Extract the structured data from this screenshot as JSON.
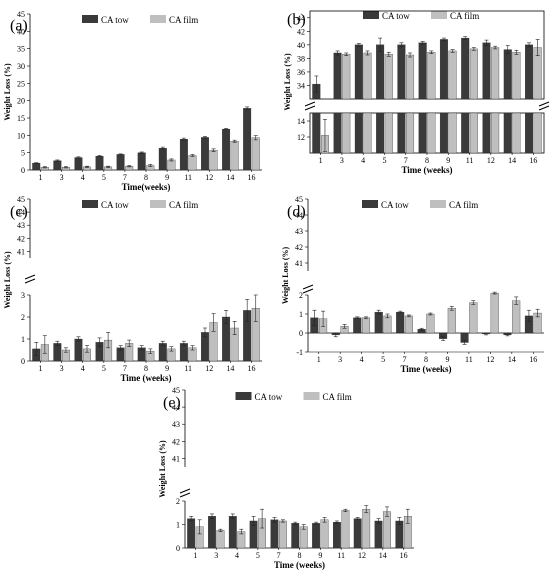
{
  "chart_data": [
    {
      "panel": "(a)",
      "type": "bar",
      "categories": [
        "1",
        "3",
        "4",
        "5",
        "7",
        "8",
        "9",
        "11",
        "12",
        "14",
        "16"
      ],
      "series": [
        {
          "name": "CA tow",
          "values": [
            2.0,
            2.7,
            3.6,
            4.0,
            4.5,
            5.0,
            6.3,
            8.9,
            9.4,
            11.8,
            17.8
          ],
          "errors": [
            0.1,
            0.2,
            0.2,
            0.2,
            0.15,
            0.2,
            0.3,
            0.3,
            0.3,
            0.2,
            0.4
          ]
        },
        {
          "name": "CA film",
          "values": [
            0.8,
            0.8,
            0.9,
            0.9,
            1.1,
            1.3,
            2.9,
            4.2,
            5.7,
            8.3,
            9.3
          ],
          "errors": [
            0.2,
            0.2,
            0.2,
            0.2,
            0.2,
            0.3,
            0.3,
            0.3,
            0.4,
            0.3,
            0.6
          ]
        }
      ],
      "xlabel": "Time(weeks)",
      "ylabel": "Weight Loss (%)",
      "ylim": [
        0,
        45
      ],
      "yticks": [
        "0",
        "5",
        "10",
        "15",
        "20",
        "25",
        "30",
        "35",
        "40",
        "45"
      ],
      "legend": "top"
    },
    {
      "panel": "(b)",
      "type": "bar",
      "broken_axis": true,
      "categories": [
        "1",
        "3",
        "4",
        "5",
        "7",
        "8",
        "9",
        "11",
        "12",
        "14",
        "16"
      ],
      "series": [
        {
          "name": "CA tow",
          "values": [
            34.2,
            38.8,
            40.0,
            40.0,
            40.0,
            40.3,
            40.8,
            41.0,
            40.3,
            39.3,
            40.0
          ],
          "errors": [
            1.2,
            0.3,
            0.2,
            1.0,
            0.3,
            0.2,
            0.2,
            0.2,
            0.4,
            0.6,
            0.3
          ]
        },
        {
          "name": "CA film",
          "values": [
            12.2,
            38.6,
            38.8,
            38.6,
            38.5,
            38.9,
            39.1,
            39.4,
            39.6,
            38.9,
            39.6
          ],
          "errors": [
            2.0,
            0.2,
            0.3,
            0.3,
            0.3,
            0.2,
            0.2,
            0.2,
            0.2,
            0.3,
            1.2
          ]
        }
      ],
      "xlabel": "Time (weeks)",
      "ylabel": "Weight Loss (%)",
      "upper_range": [
        32,
        45
      ],
      "lower_range": [
        10,
        15
      ],
      "yticks_upper": [
        "34",
        "36",
        "38",
        "40",
        "42",
        "44"
      ],
      "yticks_lower": [
        "12",
        "14"
      ],
      "legend": "top"
    },
    {
      "panel": "(c)",
      "type": "bar",
      "broken_axis": true,
      "categories": [
        "1",
        "3",
        "4",
        "5",
        "7",
        "8",
        "9",
        "11",
        "12",
        "14",
        "16"
      ],
      "series": [
        {
          "name": "CA tow",
          "values": [
            0.55,
            0.8,
            1.0,
            0.85,
            0.6,
            0.6,
            0.8,
            0.8,
            1.3,
            2.0,
            2.3
          ],
          "errors": [
            0.3,
            0.1,
            0.1,
            0.2,
            0.1,
            0.1,
            0.1,
            0.1,
            0.2,
            0.3,
            0.5
          ]
        },
        {
          "name": "CA film",
          "values": [
            0.75,
            0.5,
            0.55,
            0.95,
            0.8,
            0.45,
            0.55,
            0.6,
            1.75,
            1.5,
            2.4
          ],
          "errors": [
            0.4,
            0.1,
            0.15,
            0.35,
            0.15,
            0.1,
            0.1,
            0.1,
            0.4,
            0.3,
            0.6
          ]
        }
      ],
      "xlabel": "Time (weeks)",
      "ylabel": "Weight Loss (%)",
      "yticks_upper": [
        "41",
        "42",
        "43",
        "44",
        "45"
      ],
      "yticks_lower": [
        "0",
        "1",
        "2",
        "3"
      ],
      "legend": "top"
    },
    {
      "panel": "(d)",
      "type": "bar",
      "broken_axis": true,
      "categories": [
        "1",
        "3",
        "4",
        "5",
        "7",
        "8",
        "9",
        "11",
        "12",
        "14",
        "16"
      ],
      "series": [
        {
          "name": "CA tow",
          "values": [
            0.8,
            -0.1,
            0.8,
            1.1,
            1.1,
            0.2,
            -0.3,
            -0.5,
            -0.05,
            -0.1,
            0.9
          ],
          "errors": [
            0.4,
            0.1,
            0.05,
            0.1,
            0.05,
            0.05,
            0.1,
            0.1,
            0.05,
            0.05,
            0.3
          ]
        },
        {
          "name": "CA film",
          "values": [
            0.75,
            0.35,
            0.8,
            0.9,
            0.9,
            1.0,
            1.3,
            1.6,
            2.1,
            1.7,
            1.05
          ],
          "errors": [
            0.4,
            0.1,
            0.05,
            0.1,
            0.05,
            0.05,
            0.1,
            0.1,
            0.05,
            0.2,
            0.2
          ]
        }
      ],
      "xlabel": "Time (weeks)",
      "ylabel": "Weight Loss (%)",
      "yticks_upper": [
        "41",
        "42",
        "43",
        "44",
        "45"
      ],
      "yticks_lower": [
        "-1",
        "0",
        "1",
        "2"
      ],
      "legend": "top"
    },
    {
      "panel": "(e)",
      "type": "bar",
      "broken_axis": true,
      "categories": [
        "1",
        "3",
        "4",
        "5",
        "7",
        "8",
        "9",
        "11",
        "12",
        "14",
        "16"
      ],
      "series": [
        {
          "name": "CA tow",
          "values": [
            1.25,
            1.35,
            1.35,
            1.15,
            1.2,
            1.05,
            1.05,
            1.1,
            1.25,
            1.15,
            1.15
          ],
          "errors": [
            0.1,
            0.1,
            0.1,
            0.2,
            0.1,
            0.05,
            0.05,
            0.05,
            0.05,
            0.1,
            0.15
          ]
        },
        {
          "name": "CA film",
          "values": [
            0.9,
            0.75,
            0.7,
            1.25,
            1.15,
            0.9,
            1.2,
            1.6,
            1.65,
            1.55,
            1.35
          ],
          "errors": [
            0.3,
            0.05,
            0.1,
            0.4,
            0.05,
            0.1,
            0.1,
            0.05,
            0.15,
            0.2,
            0.3
          ]
        }
      ],
      "xlabel": "Time (weeks)",
      "ylabel": "Weight Loss (%)",
      "yticks_upper": [
        "41",
        "42",
        "43",
        "44",
        "45"
      ],
      "yticks_lower": [
        "0",
        "1",
        "2"
      ],
      "legend": "top"
    }
  ],
  "colors": {
    "ca_tow": "#3a3a3a",
    "ca_film": "#bfbfbf",
    "axis": "#000000"
  }
}
